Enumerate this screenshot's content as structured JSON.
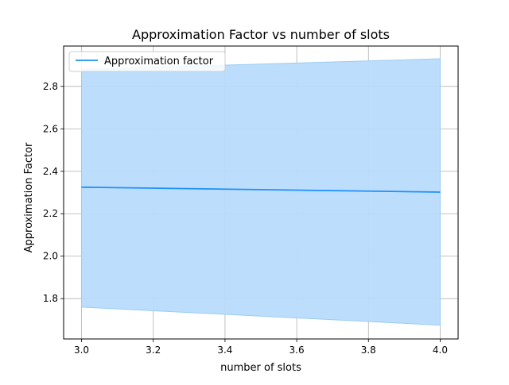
{
  "chart_data": {
    "type": "line",
    "title": "Approximation Factor vs number of slots",
    "xlabel": "number of slots",
    "ylabel": "Approximation Factor",
    "xlim": [
      2.95,
      4.05
    ],
    "ylim": [
      1.61,
      2.99
    ],
    "xticks": [
      3.0,
      3.2,
      3.4,
      3.6,
      3.8,
      4.0
    ],
    "xtick_labels": [
      "3.0",
      "3.2",
      "3.4",
      "3.6",
      "3.8",
      "4.0"
    ],
    "yticks": [
      1.8,
      2.0,
      2.2,
      2.4,
      2.6,
      2.8
    ],
    "ytick_labels": [
      "1.8",
      "2.0",
      "2.2",
      "2.4",
      "2.6",
      "2.8"
    ],
    "grid": true,
    "legend_position": "top-left",
    "series": [
      {
        "name": "Approximation factor",
        "x": [
          3.0,
          4.0
        ],
        "y": [
          2.325,
          2.302
        ],
        "band_lower": [
          1.76,
          1.675
        ],
        "band_upper": [
          2.88,
          2.93
        ],
        "color": "#1e90ff",
        "band_color": "#b8dcfc"
      }
    ]
  }
}
